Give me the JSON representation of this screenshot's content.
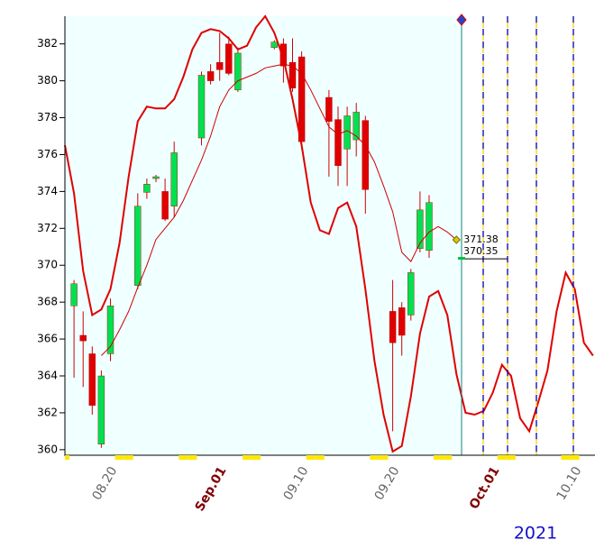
{
  "chart_data": {
    "type": "candlestick",
    "categories": [
      null,
      null,
      null,
      null,
      null,
      "08.20",
      null,
      null,
      null,
      null,
      null,
      null,
      null,
      null,
      null,
      null,
      null,
      "Sep.01",
      null,
      null,
      null,
      null,
      null,
      null,
      null,
      null,
      "09.10",
      null,
      null,
      null,
      null,
      null,
      null,
      null,
      null,
      null,
      "09.20",
      null,
      null,
      null,
      null,
      null,
      null,
      null,
      null,
      null,
      null,
      "Oct.01",
      null,
      null,
      null,
      null,
      null,
      null,
      null,
      null,
      "10.10",
      null,
      null
    ],
    "open": [
      null,
      367.8,
      366.2,
      365.2,
      360.3,
      365.2,
      null,
      null,
      368.9,
      373.95,
      374.7,
      374.0,
      373.2,
      null,
      null,
      376.9,
      380.5,
      381.0,
      382.0,
      379.5,
      null,
      null,
      null,
      381.8,
      382.0,
      381.0,
      381.3,
      null,
      null,
      379.1,
      377.9,
      376.3,
      376.8,
      377.85,
      null,
      null,
      367.5,
      367.7,
      367.3,
      370.9,
      370.8,
      null,
      null,
      null,
      null,
      null,
      null,
      null,
      null,
      null,
      null,
      null,
      null,
      null,
      null,
      null,
      null,
      null,
      null
    ],
    "high": [
      null,
      369.2,
      367.5,
      365.6,
      364.3,
      368.2,
      null,
      null,
      373.9,
      374.7,
      374.9,
      374.7,
      376.7,
      null,
      null,
      380.5,
      380.9,
      382.6,
      382.4,
      381.8,
      null,
      null,
      null,
      382.2,
      382.3,
      382.3,
      381.6,
      null,
      null,
      379.5,
      378.6,
      378.6,
      378.8,
      378.1,
      null,
      null,
      369.2,
      368.0,
      369.8,
      374.0,
      373.8,
      null,
      null,
      null,
      null,
      null,
      null,
      null,
      null,
      null,
      null,
      null,
      null,
      null,
      null,
      null,
      null,
      null,
      null
    ],
    "low": [
      null,
      363.9,
      363.4,
      361.9,
      360.1,
      364.8,
      null,
      null,
      368.7,
      373.6,
      374.5,
      372.4,
      372.6,
      null,
      null,
      376.5,
      379.8,
      380.0,
      380.3,
      379.4,
      null,
      null,
      null,
      381.7,
      379.9,
      379.4,
      376.3,
      null,
      null,
      374.8,
      374.3,
      374.3,
      375.9,
      372.8,
      null,
      null,
      361.0,
      365.1,
      367.0,
      370.7,
      370.4,
      null,
      null,
      null,
      null,
      null,
      null,
      null,
      null,
      null,
      null,
      null,
      null,
      null,
      null,
      null,
      null,
      null,
      null
    ],
    "close": [
      null,
      369.0,
      365.9,
      362.4,
      364.0,
      367.8,
      null,
      null,
      373.2,
      374.4,
      374.8,
      372.5,
      376.1,
      null,
      null,
      380.3,
      380.0,
      380.6,
      380.4,
      381.5,
      null,
      null,
      null,
      382.1,
      380.8,
      379.6,
      376.7,
      null,
      null,
      377.8,
      375.4,
      378.1,
      378.3,
      374.1,
      null,
      null,
      365.8,
      366.2,
      369.6,
      373.0,
      373.4,
      null,
      null,
      null,
      null,
      null,
      null,
      null,
      null,
      null,
      null,
      null,
      null,
      null,
      null,
      null,
      null,
      null,
      null
    ],
    "up_color": "#00e050",
    "down_color": "#e00000",
    "lines": [
      {
        "color": "#e00000",
        "width": 2,
        "values": [
          376.5,
          373.9,
          369.7,
          367.3,
          367.6,
          368.7,
          371.2,
          374.8,
          377.8,
          378.6,
          378.5,
          378.5,
          379,
          380.2,
          381.7,
          382.6,
          382.8,
          382.7,
          382.3,
          381.7,
          381.9,
          382.9,
          383.5,
          382.6,
          381.2,
          379,
          376.5,
          373.4,
          371.9,
          371.7,
          373.1,
          373.4,
          372.1,
          368.7,
          364.8,
          361.9,
          359.9,
          360.2,
          362.9,
          366.3,
          368.3,
          368.6,
          367.3,
          364.1,
          362,
          361.9,
          362.1,
          363.1,
          364.6,
          364,
          361.7,
          361,
          362.6,
          364.3,
          367.5,
          369.6,
          368.7,
          365.8,
          365.1
        ]
      },
      {
        "color": "#d00000",
        "width": 1,
        "values": [
          null,
          null,
          null,
          null,
          365.1,
          365.6,
          366.5,
          367.5,
          368.8,
          370,
          371.4,
          372,
          372.6,
          373.5,
          374.6,
          375.7,
          377,
          378.6,
          379.5,
          380,
          380.2,
          380.4,
          380.7,
          380.8,
          380.9,
          380.8,
          380.4,
          379.5,
          378.5,
          377.5,
          377.1,
          377.3,
          377,
          376.5,
          375.6,
          374.3,
          372.9,
          370.7,
          370.2,
          371.2,
          371.8,
          372.1,
          371.8,
          371.38,
          null,
          null,
          null,
          null,
          null,
          null,
          null,
          null,
          null,
          null,
          null,
          null,
          null,
          null,
          null
        ]
      }
    ],
    "last_price": 370.35,
    "year": "2021",
    "ylim": [
      359.7,
      383.5
    ],
    "yticks": [
      360,
      362,
      364,
      366,
      368,
      370,
      372,
      374,
      376,
      378,
      380,
      382
    ]
  }
}
